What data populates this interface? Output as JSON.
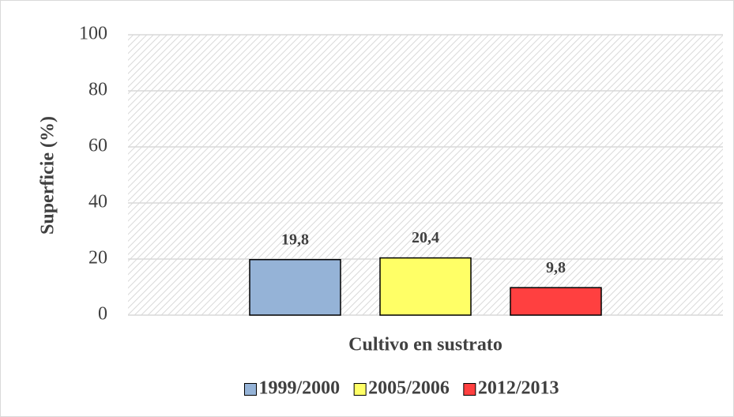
{
  "chart_data": {
    "type": "bar",
    "y_label": "Superficie (%)",
    "categories": [
      "Cultivo en sustrato"
    ],
    "series": [
      {
        "name": "1999/2000",
        "color": "#95b3d7",
        "values": [
          19.8
        ],
        "value_labels": [
          "19,8"
        ]
      },
      {
        "name": "2005/2006",
        "color": "#ffff66",
        "values": [
          20.4
        ],
        "value_labels": [
          "20,4"
        ]
      },
      {
        "name": "2012/2013",
        "color": "#ff4040",
        "values": [
          9.8
        ],
        "value_labels": [
          "9,8"
        ]
      }
    ],
    "ylim": [
      0,
      100
    ],
    "yticks": [
      0,
      20,
      40,
      60,
      80,
      100
    ],
    "grid": true,
    "legend": "bottom"
  }
}
